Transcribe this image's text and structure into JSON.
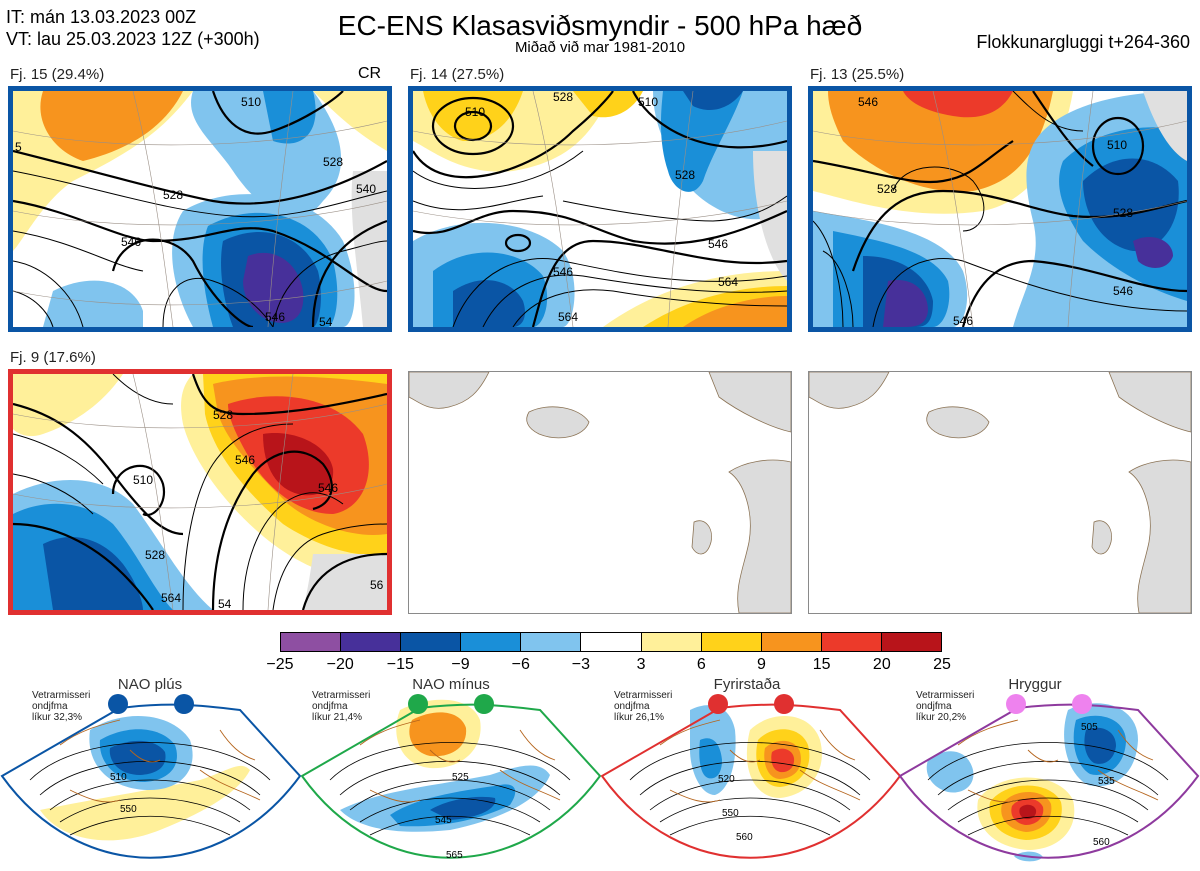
{
  "header": {
    "it_line": "IT: mán 13.03.2023 00Z",
    "vt_line": "VT: lau 25.03.2023 12Z  (+300h)",
    "title": "EC-ENS Klasasviðsmyndir - 500 hPa hæð",
    "subtitle": "Miðað við mar 1981-2010",
    "window": "Flokkunargluggi t+264-360"
  },
  "panels": [
    {
      "label": "Fj. 15 (29.4%)",
      "badge": "CR",
      "border": "#0a55a5",
      "contours": [
        "510",
        "528",
        "528",
        "546",
        "546",
        "54",
        "540",
        "5"
      ]
    },
    {
      "label": "Fj. 14 (27.5%)",
      "badge": "",
      "border": "#0a55a5",
      "contours": [
        "510",
        "528",
        "528",
        "546",
        "546",
        "564",
        "564",
        "510"
      ]
    },
    {
      "label": "Fj. 13 (25.5%)",
      "badge": "",
      "border": "#0a55a5",
      "contours": [
        "510",
        "528",
        "528",
        "546",
        "546",
        "546"
      ]
    },
    {
      "label": "Fj. 9 (17.6%)",
      "badge": "",
      "border": "#e03030",
      "contours": [
        "510",
        "528",
        "528",
        "546",
        "546",
        "564",
        "54",
        "56"
      ]
    }
  ],
  "colorbar": {
    "colors": [
      "#8e4fa2",
      "#47309a",
      "#0a55a5",
      "#1a8fd8",
      "#80c4ee",
      "#ffffff",
      "#fff09a",
      "#ffd21a",
      "#f7941e",
      "#ec3a2a",
      "#b8141a"
    ],
    "labels": [
      "−25",
      "−20",
      "−15",
      "−9",
      "−6",
      "−3",
      "3",
      "6",
      "9",
      "15",
      "20",
      "25"
    ]
  },
  "regimes": [
    {
      "name": "NAO plús",
      "info": [
        "Vetrarmisseri",
        "ondjfma",
        "líkur 32,3%"
      ],
      "color": "#0a55a5",
      "contours": [
        "510",
        "550"
      ]
    },
    {
      "name": "NAO mínus",
      "info": [
        "Vetrarmisseri",
        "ondjfma",
        "líkur 21,4%"
      ],
      "color": "#1fa84a",
      "contours": [
        "525",
        "545",
        "565"
      ]
    },
    {
      "name": "Fyrirstaða",
      "info": [
        "Vetrarmisseri",
        "ondjfma",
        "líkur 26,1%"
      ],
      "color": "#e03030",
      "contours": [
        "520",
        "550",
        "560"
      ]
    },
    {
      "name": "Hryggur",
      "info": [
        "Vetrarmisseri",
        "ondjfma",
        "líkur 20,2%"
      ],
      "color": "#8e3a9e",
      "contours": [
        "505",
        "535",
        "560"
      ]
    }
  ]
}
